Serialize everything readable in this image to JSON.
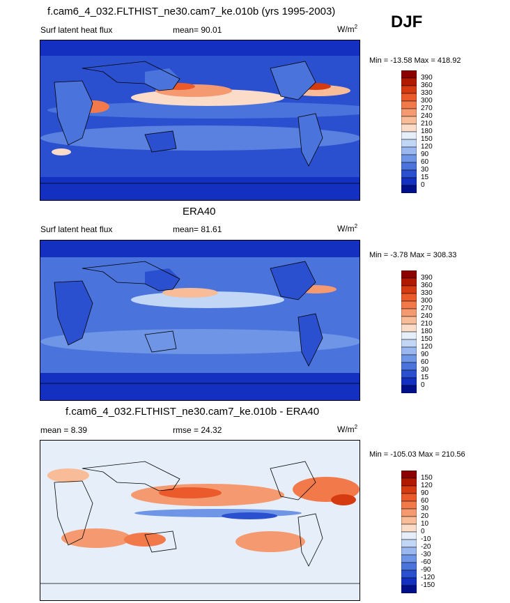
{
  "season": "DJF",
  "panels": [
    {
      "title": "f.cam6_4_032.FLTHIST_ne30.cam7_ke.010b (yrs 1995-2003)",
      "left_label": "Surf latent heat flux",
      "mid_label": "mean=  90.01",
      "units": "W/m",
      "units_sup": "2",
      "minmax": "Min = -13.58 Max = 418.92",
      "colorbar": "abs"
    },
    {
      "title": "ERA40",
      "left_label": "Surf latent heat flux",
      "mid_label": "mean=  81.61",
      "units": "W/m",
      "units_sup": "2",
      "minmax": "Min =  -3.78 Max = 308.33",
      "colorbar": "abs"
    },
    {
      "title": "f.cam6_4_032.FLTHIST_ne30.cam7_ke.010b - ERA40",
      "left_label": "mean =   8.39",
      "mid_label": "rmse =  24.32",
      "units": "W/m",
      "units_sup": "2",
      "minmax": "Min = -105.03 Max = 210.56",
      "colorbar": "diff"
    }
  ],
  "colorbars": {
    "abs": {
      "labels": [
        "390",
        "360",
        "330",
        "300",
        "270",
        "240",
        "210",
        "180",
        "150",
        "120",
        "90",
        "60",
        "30",
        "15",
        "0"
      ],
      "colors": [
        "#8b0000",
        "#b21a00",
        "#d63a10",
        "#ea5a2a",
        "#f27a4a",
        "#f59a70",
        "#f8bc98",
        "#fbdcc8",
        "#e6eefa",
        "#c2d6f6",
        "#9ab8ef",
        "#6f95e6",
        "#4a73dc",
        "#2a50cf",
        "#1430c0",
        "#00108a"
      ]
    },
    "diff": {
      "labels": [
        "150",
        "120",
        "90",
        "60",
        "30",
        "20",
        "10",
        "0",
        "-10",
        "-20",
        "-30",
        "-60",
        "-90",
        "-120",
        "-150"
      ],
      "colors": [
        "#8b0000",
        "#b21a00",
        "#d63a10",
        "#ea5a2a",
        "#f27a4a",
        "#f59a70",
        "#f8bc98",
        "#fbdcc8",
        "#e6eefa",
        "#c2d6f6",
        "#9ab8ef",
        "#6f95e6",
        "#4a73dc",
        "#2a50cf",
        "#1430c0",
        "#00108a"
      ]
    }
  },
  "chart_data": [
    {
      "type": "heatmap",
      "title": "f.cam6_4_032.FLTHIST_ne30.cam7_ke.010b (yrs 1995-2003)",
      "variable": "Surf latent heat flux",
      "units": "W/m2",
      "mean": 90.01,
      "min": -13.58,
      "max": 418.92,
      "contour_levels": [
        0,
        15,
        30,
        60,
        90,
        120,
        150,
        180,
        210,
        240,
        270,
        300,
        330,
        360,
        390
      ]
    },
    {
      "type": "heatmap",
      "title": "ERA40",
      "variable": "Surf latent heat flux",
      "units": "W/m2",
      "mean": 81.61,
      "min": -3.78,
      "max": 308.33,
      "contour_levels": [
        0,
        15,
        30,
        60,
        90,
        120,
        150,
        180,
        210,
        240,
        270,
        300,
        330,
        360,
        390
      ]
    },
    {
      "type": "heatmap",
      "title": "f.cam6_4_032.FLTHIST_ne30.cam7_ke.010b - ERA40",
      "units": "W/m2",
      "mean": 8.39,
      "rmse": 24.32,
      "min": -105.03,
      "max": 210.56,
      "contour_levels": [
        -150,
        -120,
        -90,
        -60,
        -30,
        -20,
        -10,
        0,
        10,
        20,
        30,
        60,
        90,
        120,
        150
      ]
    }
  ]
}
